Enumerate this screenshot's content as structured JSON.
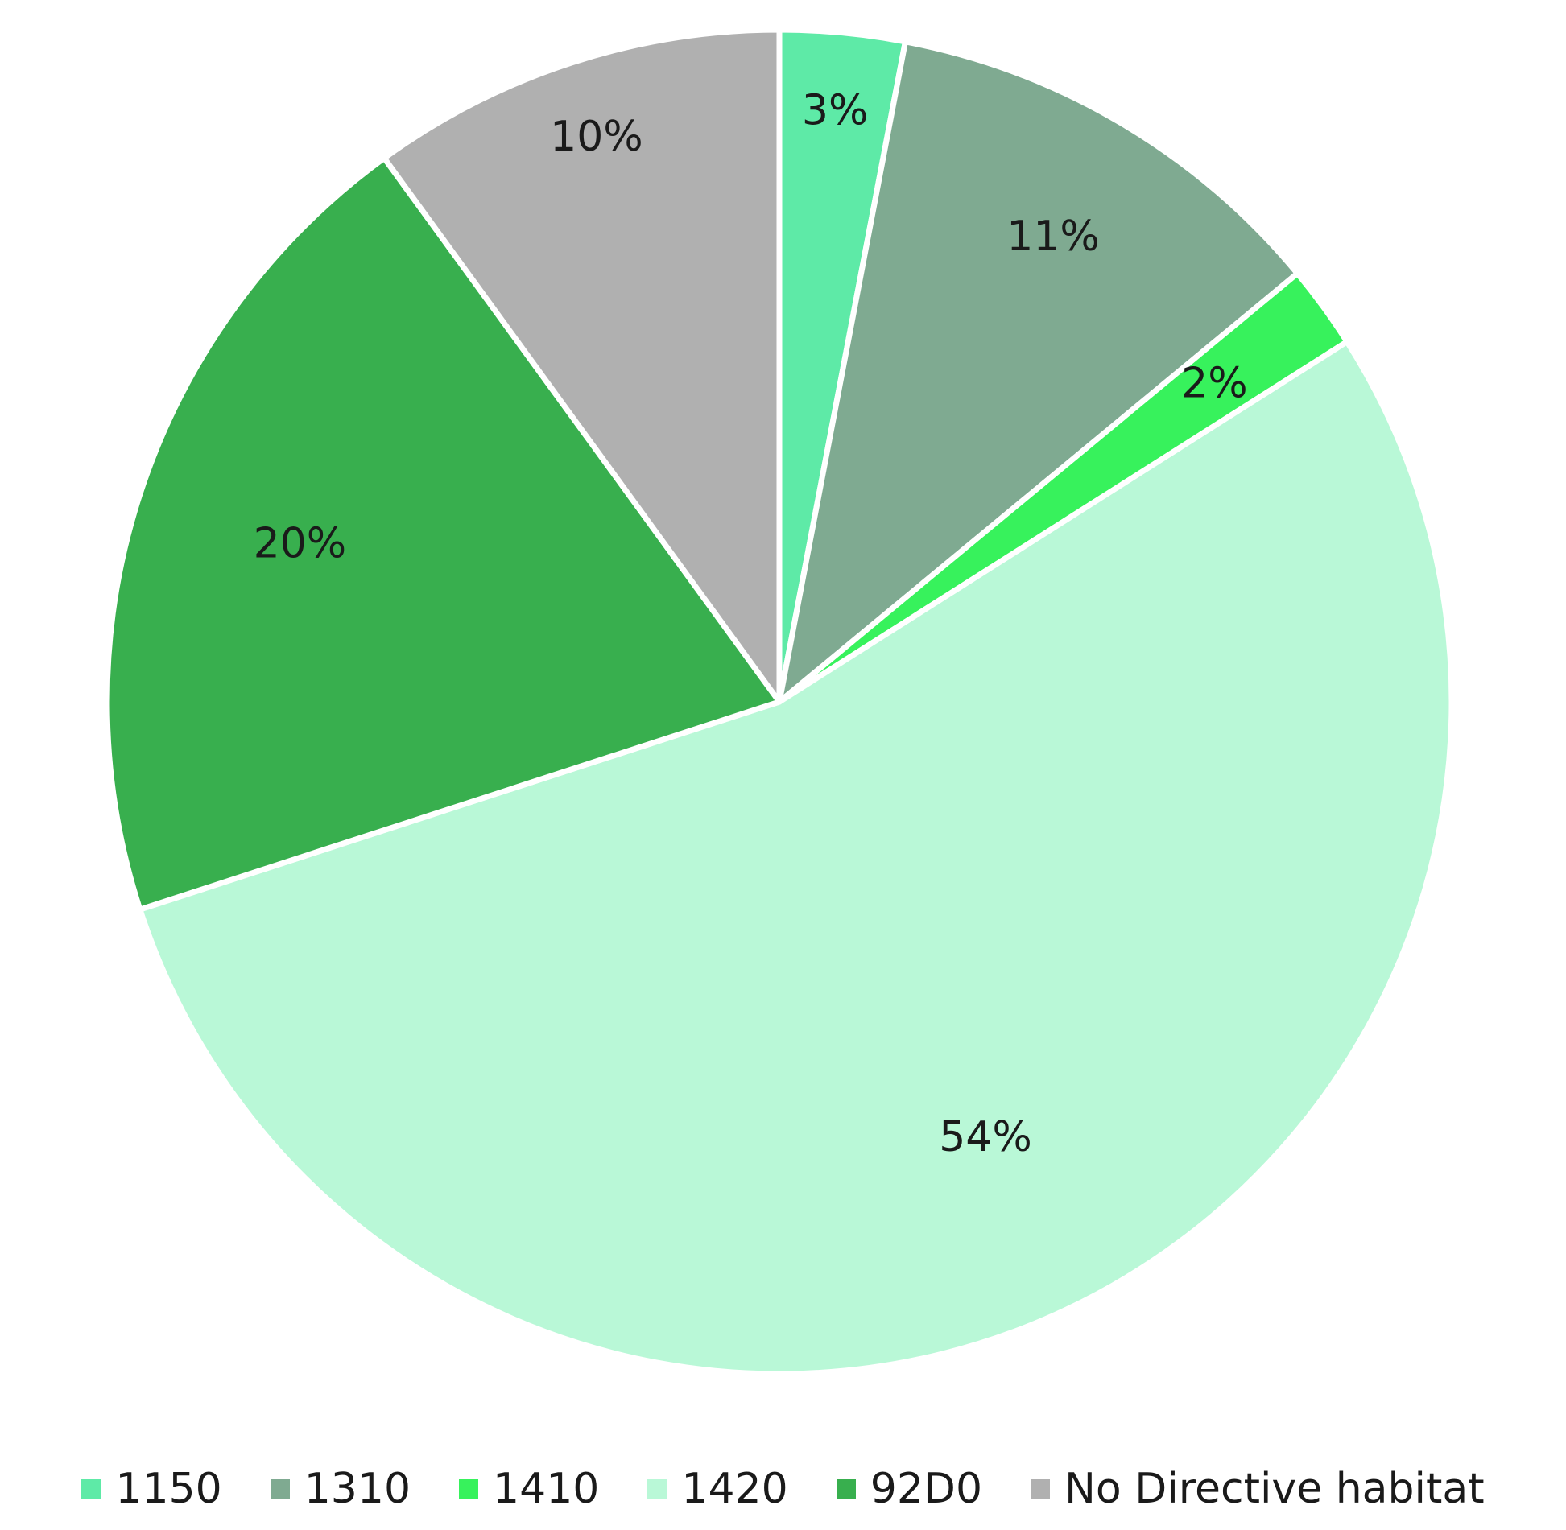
{
  "chart_data": {
    "type": "pie",
    "title": "",
    "labels": [
      "1150",
      "1310",
      "1410",
      "1420",
      "92D0",
      "No Directive habitat"
    ],
    "values": [
      3,
      11,
      2,
      54,
      20,
      10
    ],
    "value_labels": [
      "3%",
      "11%",
      "2%",
      "54%",
      "20%",
      "10%"
    ],
    "colors": [
      "#5EEAA7",
      "#7FAA91",
      "#37F25C",
      "#B9F8D7",
      "#38AF4E",
      "#B0B0B0"
    ],
    "start_angle": "12 o'clock",
    "direction": "clockwise",
    "slice_separator_color": "#FFFFFF",
    "legend_position": "bottom"
  }
}
